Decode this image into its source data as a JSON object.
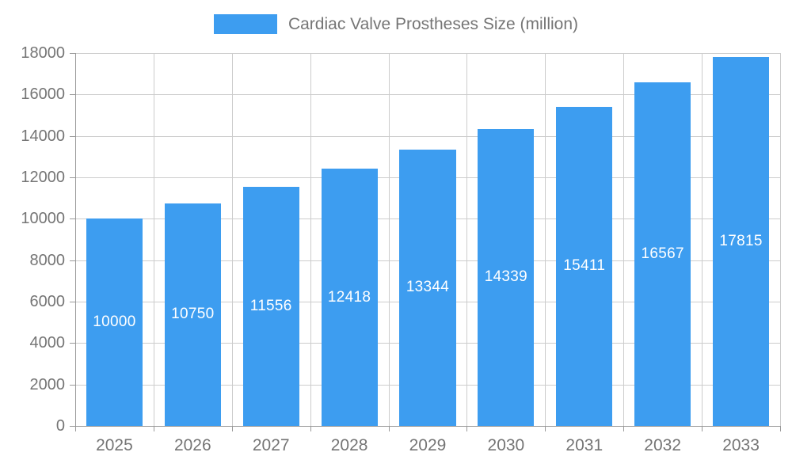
{
  "chart_data": {
    "type": "bar",
    "title": "Cardiac Valve Prostheses Size (million)",
    "categories": [
      "2025",
      "2026",
      "2027",
      "2028",
      "2029",
      "2030",
      "2031",
      "2032",
      "2033"
    ],
    "values": [
      10000,
      10750,
      11556,
      12418,
      13344,
      14339,
      15411,
      16567,
      17815
    ],
    "value_labels": [
      "10000",
      "10750",
      "11556",
      "12418",
      "13344",
      "14339",
      "15411",
      "16567",
      "17815"
    ],
    "xlabel": "",
    "ylabel": "",
    "ylim": [
      0,
      18000
    ],
    "yticks": [
      0,
      2000,
      4000,
      6000,
      8000,
      10000,
      12000,
      14000,
      16000,
      18000
    ],
    "grid": true,
    "legend_position": "top-center",
    "value_label_position": "center-inside-bar",
    "colors": {
      "bar": "#3d9df0",
      "label_text": "#ffffff",
      "axis_text": "#757575",
      "gridline": "#cccccc",
      "axis_line": "#999999",
      "background": "#ffffff"
    }
  }
}
